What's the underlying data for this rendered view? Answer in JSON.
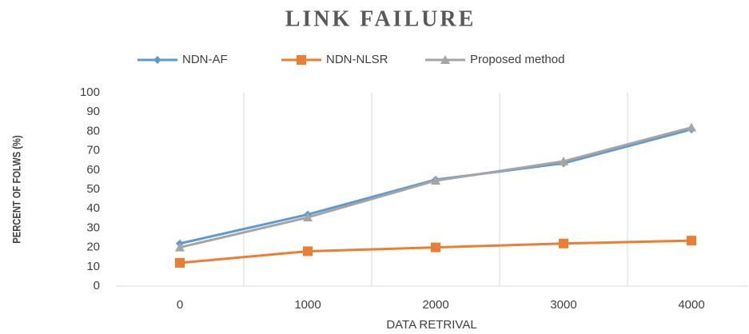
{
  "chart_data": {
    "type": "line",
    "title": "LINK FAILURE",
    "x_label": "DATA RETRIVAL",
    "y_label": "PERCENT OF FOLWS (%)",
    "categories": [
      "0",
      "1000",
      "2000",
      "3000",
      "4000"
    ],
    "series": [
      {
        "name": "NDN-AF",
        "color": "#5b9bd5",
        "marker": "diamond",
        "values": [
          22,
          37,
          55,
          63.5,
          81
        ]
      },
      {
        "name": "NDN-NLSR",
        "color": "#ed7d31",
        "marker": "square",
        "values": [
          12,
          18,
          20,
          22,
          23.5
        ]
      },
      {
        "name": "Proposed method",
        "color": "#a5a5a5",
        "marker": "triangle",
        "values": [
          20,
          35.5,
          54.5,
          64.5,
          82
        ]
      }
    ],
    "ylim": [
      0,
      100
    ],
    "yticks": [
      0,
      10,
      20,
      30,
      40,
      50,
      60,
      70,
      80,
      90,
      100
    ],
    "grid": "x",
    "legend": "top"
  }
}
